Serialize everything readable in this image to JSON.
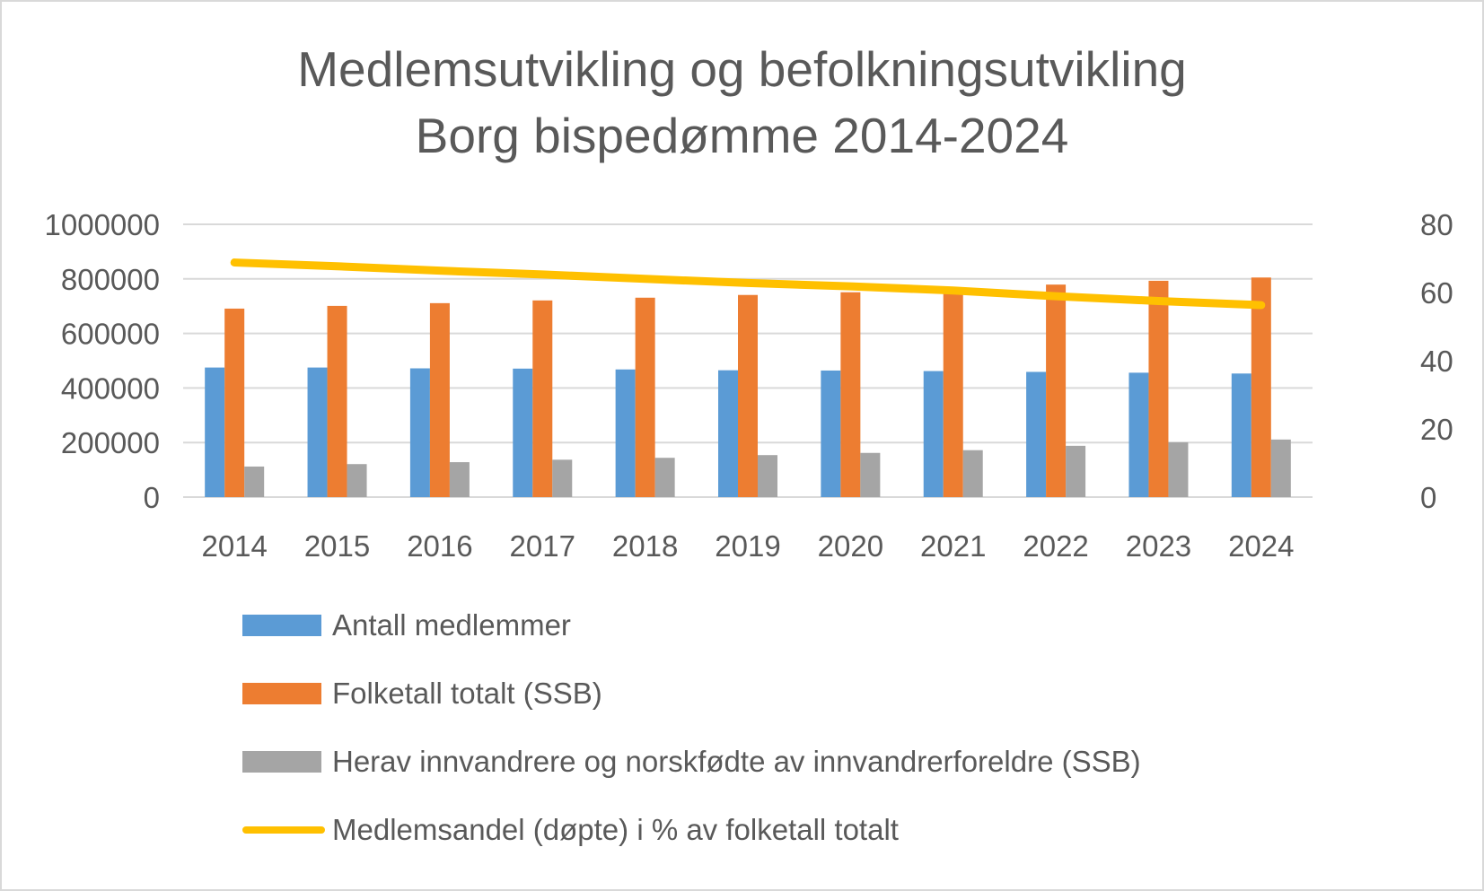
{
  "chart_data": {
    "type": "bar",
    "title": [
      "Medlemsutvikling og befolkningsutvikling",
      "Borg bispedømme 2014-2024"
    ],
    "categories": [
      "2014",
      "2015",
      "2016",
      "2017",
      "2018",
      "2019",
      "2020",
      "2021",
      "2022",
      "2023",
      "2024"
    ],
    "y_left": {
      "ylim": [
        0,
        1000000
      ],
      "ticks": [
        "0",
        "200000",
        "400000",
        "600000",
        "800000",
        "1000000"
      ]
    },
    "y_right": {
      "ylim": [
        0,
        80
      ],
      "ticks": [
        "0",
        "20",
        "40",
        "60",
        "80"
      ]
    },
    "grid": true,
    "legend_position": "bottom",
    "series": [
      {
        "name": "Antall medlemmer",
        "type": "bar",
        "axis": "left",
        "color": "#5b9bd5",
        "values": [
          475000,
          475000,
          472000,
          471000,
          468000,
          465000,
          464000,
          462000,
          459000,
          456000,
          453000
        ]
      },
      {
        "name": "Folketall totalt (SSB)",
        "type": "bar",
        "axis": "left",
        "color": "#ed7d31",
        "values": [
          691000,
          701000,
          711000,
          721000,
          731000,
          741000,
          751000,
          762000,
          779000,
          793000,
          805000
        ]
      },
      {
        "name": "Herav innvandrere og norskfødte av innvandrerforeldre (SSB)",
        "type": "bar",
        "axis": "left",
        "color": "#a5a5a5",
        "values": [
          112000,
          121000,
          128000,
          137000,
          144000,
          154000,
          162000,
          172000,
          188000,
          201000,
          211000
        ]
      },
      {
        "name": "Medlemsandel (døpte) i % av folketall totalt",
        "type": "line",
        "axis": "right",
        "color": "#ffc000",
        "values": [
          68.8,
          67.7,
          66.4,
          65.3,
          64.0,
          62.8,
          61.8,
          60.6,
          58.9,
          57.5,
          56.3
        ]
      }
    ]
  }
}
